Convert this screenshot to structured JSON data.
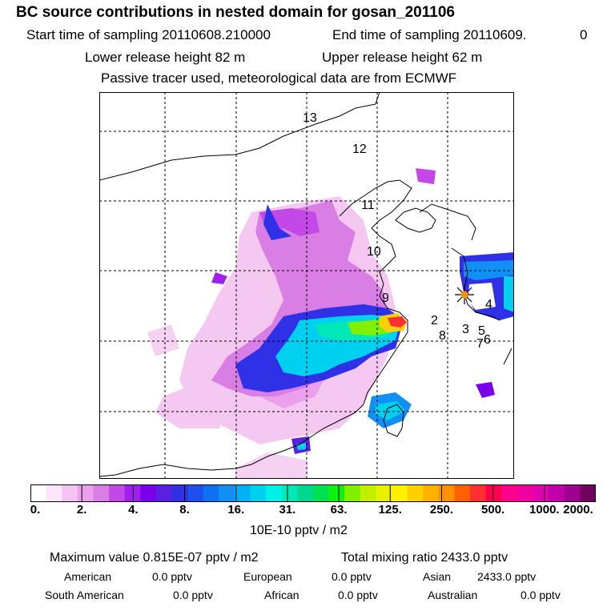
{
  "header": {
    "title": "BC  source contributions in nested domain for gosan_201106",
    "start_label": "Start time of sampling 20110608.210000",
    "end_label": "End time of sampling 20110609.",
    "end_tail": "0",
    "lower_label": "Lower release height   82 m",
    "upper_label": "Upper release height   62 m",
    "tracer_line": "Passive tracer used, meteorological data are from ECMWF"
  },
  "map": {
    "region_labels": [
      "13",
      "12",
      "11",
      "10",
      "9",
      "2",
      "8",
      "3",
      "5",
      "7",
      "6",
      "4"
    ]
  },
  "colorbar": {
    "ticks": [
      "0.",
      "2.",
      "4.",
      "8.",
      "16.",
      "31.",
      "63.",
      "125.",
      "250.",
      "500.",
      "1000.",
      "2000."
    ],
    "colors": [
      "#ffffff",
      "#fde6fb",
      "#f6c4f2",
      "#eaa0ec",
      "#d87ee4",
      "#c248e8",
      "#a020f0",
      "#7a00ea",
      "#5a20e0",
      "#3030e6",
      "#1e50f0",
      "#1070f2",
      "#1090f5",
      "#00b0f5",
      "#00d0f0",
      "#00f0e8",
      "#00e8b8",
      "#00d890",
      "#00e050",
      "#10f010",
      "#80f000",
      "#c0f000",
      "#e8f000",
      "#fff000",
      "#ffd000",
      "#ffb000",
      "#ff9000",
      "#ff6000",
      "#ff3030",
      "#ff0050",
      "#ff0090",
      "#f000a0",
      "#e000b0",
      "#c000a8",
      "#a00090",
      "#700060"
    ],
    "units": "10E-10 pptv / m2"
  },
  "stats": {
    "max_label": "Maximum value  0.815E-07 pptv / m2",
    "total_label": "Total mixing ratio     2433.0 pptv",
    "american": "American",
    "american_val": "0.0 pptv",
    "european": "European",
    "european_val": "0.0 pptv",
    "asian": "Asian",
    "asian_val": "2433.0 pptv",
    "south_american": "South American",
    "south_american_val": "0.0 pptv",
    "african": "African",
    "african_val": "0.0 pptv",
    "australian": "Australian",
    "australian_val": "0.0 pptv"
  }
}
